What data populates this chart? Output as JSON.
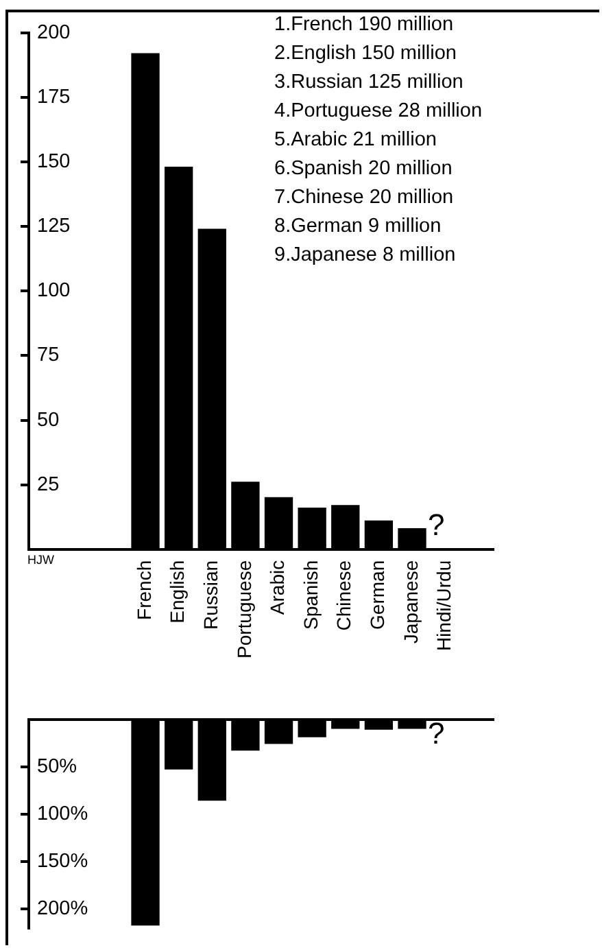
{
  "chart_data": [
    {
      "type": "bar",
      "categories": [
        "French",
        "English",
        "Russian",
        "Portuguese",
        "Arabic",
        "Spanish",
        "Chinese",
        "German",
        "Japanese",
        "Hindi/Urdu"
      ],
      "values": [
        192,
        148,
        124,
        26,
        20,
        16,
        17,
        11,
        8,
        null
      ],
      "color": "#000000",
      "ylim": [
        0,
        200
      ],
      "yticks": [
        25,
        50,
        75,
        100,
        125,
        150,
        175,
        200
      ],
      "annotations": [
        "1.French 190 million",
        "2.English 150 million",
        "3.Russian 125 million",
        "4.Portuguese 28 million",
        "5.Arabic 21 million",
        "6.Spanish 20 million",
        "7.Chinese 20 million",
        "8.German 9 million",
        "9.Japanese 8 million",
        "?"
      ]
    },
    {
      "type": "bar",
      "categories": [
        null,
        null,
        null,
        null,
        null,
        null,
        null,
        null,
        null,
        null
      ],
      "values": [
        217,
        52,
        85,
        32,
        25,
        18,
        9,
        10,
        9,
        null
      ],
      "color": "#000000",
      "ylim": [
        220,
        0
      ],
      "yticks": [
        {
          "value": 50,
          "label": "50%"
        },
        {
          "value": 100,
          "label": "100%"
        },
        {
          "value": 150,
          "label": "150%"
        },
        {
          "value": 200,
          "label": "200%"
        }
      ],
      "tick_labels": "y",
      "annotations": [
        "HJW",
        "?"
      ]
    }
  ]
}
